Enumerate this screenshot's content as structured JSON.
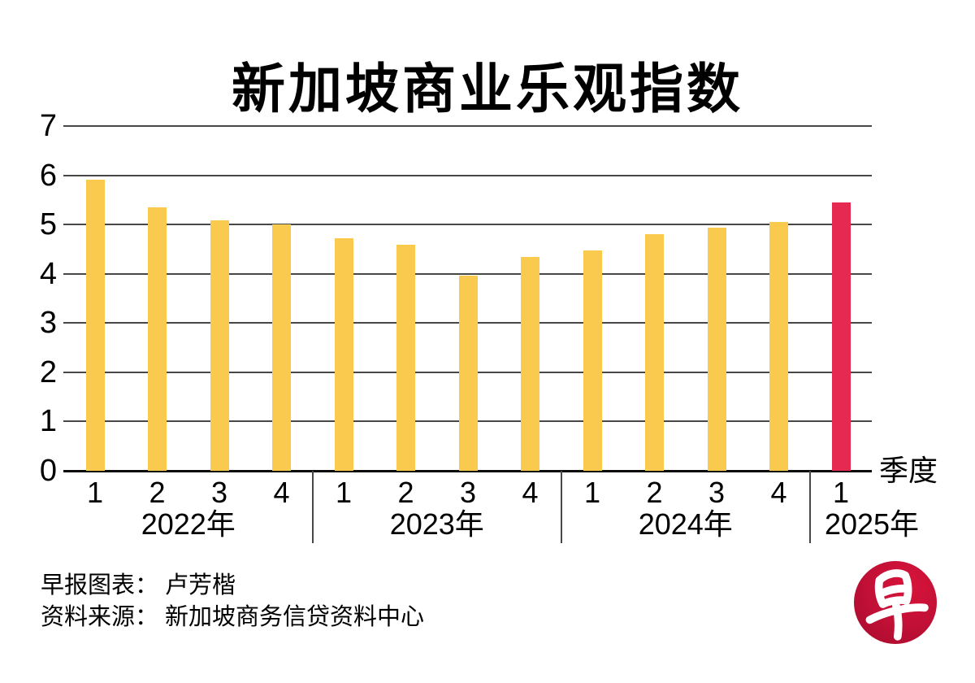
{
  "title": "新加坡商业乐观指数",
  "chart_data": {
    "type": "bar",
    "title": "新加坡商业乐观指数",
    "xlabel": "季度",
    "ylabel": "",
    "ylim": [
      0,
      7
    ],
    "yticks": [
      0,
      1,
      2,
      3,
      4,
      5,
      6,
      7
    ],
    "grid": true,
    "legend_position": "none",
    "bar_color": "#FACA4F",
    "highlight_color": "#E62950",
    "grid_color": "#474747",
    "groups": [
      {
        "year": "2022年",
        "quarters": [
          "1",
          "2",
          "3",
          "4"
        ],
        "values": [
          5.91,
          5.35,
          5.09,
          5.0
        ],
        "highlight": false
      },
      {
        "year": "2023年",
        "quarters": [
          "1",
          "2",
          "3",
          "4"
        ],
        "values": [
          4.73,
          4.59,
          3.97,
          4.35
        ],
        "highlight": false
      },
      {
        "year": "2024年",
        "quarters": [
          "1",
          "2",
          "3",
          "4"
        ],
        "values": [
          4.47,
          4.81,
          4.93,
          5.06
        ],
        "highlight": false
      },
      {
        "year": "2025年",
        "quarters": [
          "1"
        ],
        "values": [
          5.44
        ],
        "highlight": true
      }
    ]
  },
  "footer": {
    "credit": "早报图表： 卢芳楷",
    "source": "资料来源： 新加坡商务信贷资料中心"
  },
  "logo": {
    "glyph": "早",
    "bg_color": "#C31036"
  }
}
